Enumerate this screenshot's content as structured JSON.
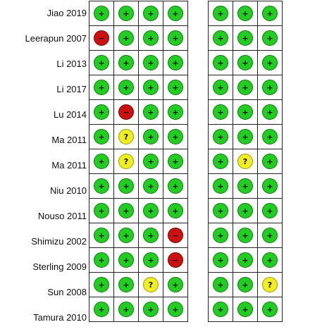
{
  "chart_data": {
    "type": "table",
    "chart_kind": "risk-of-bias summary",
    "colors": {
      "low": "#22cc22",
      "high": "#cc1111",
      "unclear": "#eeee22"
    },
    "symbols": {
      "low": "+",
      "high": "−",
      "unclear": "?"
    },
    "columns_group1": 4,
    "columns_group2": 3,
    "rows": [
      {
        "study": "Jiao 2019",
        "group1": [
          "low",
          "low",
          "low",
          "low"
        ],
        "group2": [
          "low",
          "low",
          "low"
        ]
      },
      {
        "study": "Leerapun 2007",
        "group1": [
          "high",
          "low",
          "low",
          "low"
        ],
        "group2": [
          "low",
          "low",
          "low"
        ]
      },
      {
        "study": "Li  2013",
        "group1": [
          "low",
          "low",
          "low",
          "low"
        ],
        "group2": [
          "low",
          "low",
          "low"
        ]
      },
      {
        "study": "Li 2017",
        "group1": [
          "low",
          "low",
          "low",
          "low"
        ],
        "group2": [
          "low",
          "low",
          "low"
        ]
      },
      {
        "study": "Lu 2014",
        "group1": [
          "low",
          "high",
          "low",
          "low"
        ],
        "group2": [
          "low",
          "low",
          "low"
        ]
      },
      {
        "study": "Ma 2011",
        "group1": [
          "low",
          "unclear",
          "low",
          "low"
        ],
        "group2": [
          "low",
          "low",
          "low"
        ]
      },
      {
        "study": "Ma  2011",
        "group1": [
          "low",
          "unclear",
          "low",
          "low"
        ],
        "group2": [
          "low",
          "unclear",
          "low"
        ]
      },
      {
        "study": "Niu 2010",
        "group1": [
          "low",
          "low",
          "low",
          "low"
        ],
        "group2": [
          "low",
          "low",
          "low"
        ]
      },
      {
        "study": "Nouso 2011",
        "group1": [
          "low",
          "low",
          "low",
          "low"
        ],
        "group2": [
          "low",
          "low",
          "low"
        ]
      },
      {
        "study": "Shimizu 2002",
        "group1": [
          "low",
          "low",
          "low",
          "high"
        ],
        "group2": [
          "low",
          "low",
          "low"
        ]
      },
      {
        "study": "Sterling 2009",
        "group1": [
          "low",
          "low",
          "low",
          "high"
        ],
        "group2": [
          "low",
          "low",
          "low"
        ]
      },
      {
        "study": "Sun 2008",
        "group1": [
          "low",
          "low",
          "unclear",
          "low"
        ],
        "group2": [
          "low",
          "low",
          "unclear"
        ]
      },
      {
        "study": "Tamura 2010",
        "group1": [
          "low",
          "low",
          "low",
          "low"
        ],
        "group2": [
          "low",
          "low",
          "low"
        ]
      }
    ]
  }
}
